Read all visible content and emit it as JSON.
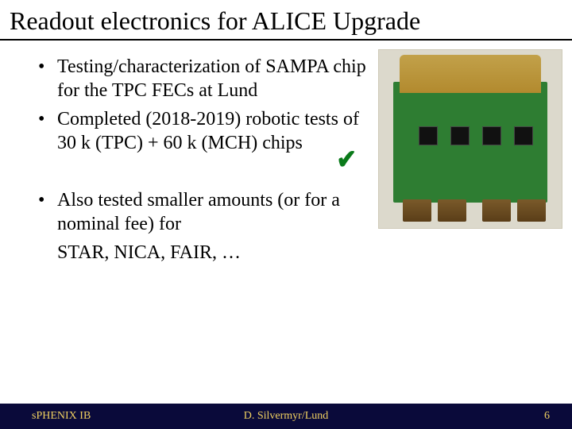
{
  "title": "Readout electronics for ALICE Upgrade",
  "bullets": {
    "b1": "Testing/characterization of SAMPA chip for the TPC FECs at Lund",
    "b2": "Completed (2018-2019) robotic tests of 30 k (TPC) + 60 k (MCH) chips",
    "b3": "Also tested smaller amounts (or for a nominal fee) for",
    "b3b": "STAR, NICA, FAIR, …"
  },
  "checkmark_glyph": "✔",
  "footer": {
    "left": "sPHENIX IB",
    "center": "D. Silvermyr/Lund",
    "page": "6"
  },
  "colors": {
    "footer_bg": "#0a0a3a",
    "footer_text": "#f0d060",
    "check": "#0a7a1a",
    "pcb": "#2e7d32"
  }
}
